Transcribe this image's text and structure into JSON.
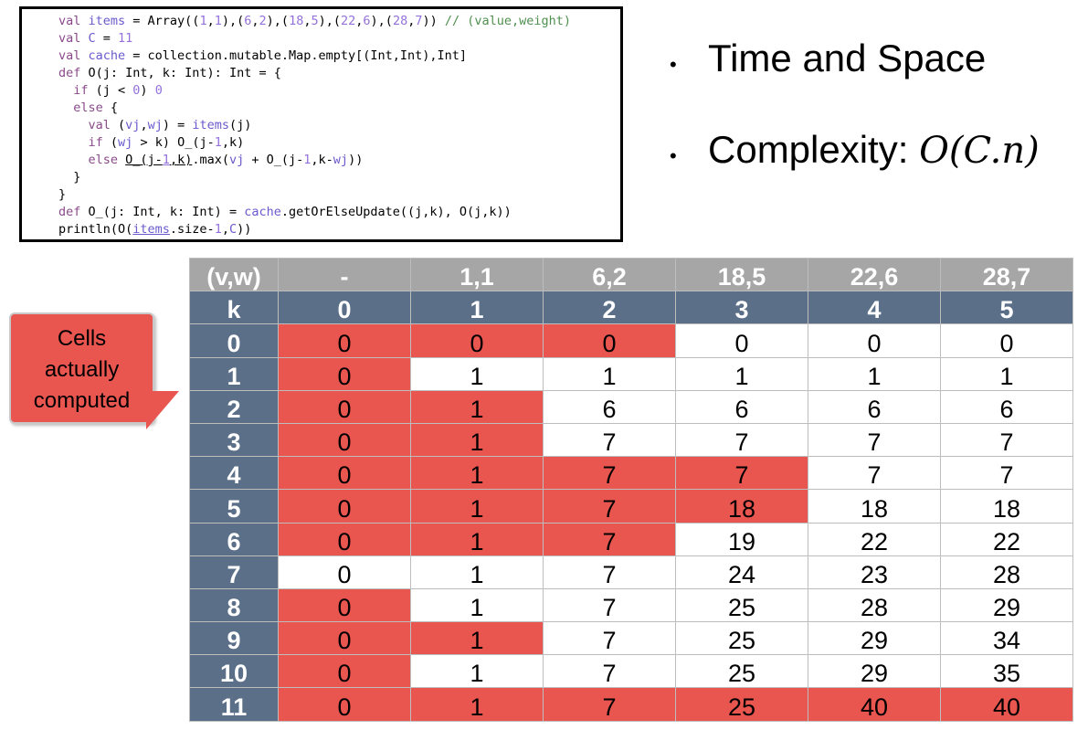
{
  "code": {
    "lines": [
      [
        {
          "t": "val ",
          "c": "kw"
        },
        {
          "t": "items",
          "c": "id"
        },
        {
          "t": " = Array(("
        },
        {
          "t": "1",
          "c": "num"
        },
        {
          "t": ","
        },
        {
          "t": "1",
          "c": "num"
        },
        {
          "t": "),("
        },
        {
          "t": "6",
          "c": "num"
        },
        {
          "t": ","
        },
        {
          "t": "2",
          "c": "num"
        },
        {
          "t": "),("
        },
        {
          "t": "18",
          "c": "num"
        },
        {
          "t": ","
        },
        {
          "t": "5",
          "c": "num"
        },
        {
          "t": "),("
        },
        {
          "t": "22",
          "c": "num"
        },
        {
          "t": ","
        },
        {
          "t": "6",
          "c": "num"
        },
        {
          "t": "),("
        },
        {
          "t": "28",
          "c": "num"
        },
        {
          "t": ","
        },
        {
          "t": "7",
          "c": "num"
        },
        {
          "t": ")) "
        },
        {
          "t": "// (value,weight)",
          "c": "cmt"
        }
      ],
      [
        {
          "t": "val ",
          "c": "kw"
        },
        {
          "t": "C",
          "c": "id"
        },
        {
          "t": " = "
        },
        {
          "t": "11",
          "c": "num"
        }
      ],
      [
        {
          "t": "val ",
          "c": "kw"
        },
        {
          "t": "cache",
          "c": "id"
        },
        {
          "t": " = collection.mutable.Map.empty[(Int,Int),Int]"
        }
      ],
      [
        {
          "t": "def ",
          "c": "kw"
        },
        {
          "t": "O(j: Int, k: Int): Int = {"
        }
      ],
      [
        {
          "t": "  if ",
          "c": "kw"
        },
        {
          "t": "(j < "
        },
        {
          "t": "0",
          "c": "num"
        },
        {
          "t": ") "
        },
        {
          "t": "0",
          "c": "num"
        }
      ],
      [
        {
          "t": "  else ",
          "c": "kw"
        },
        {
          "t": "{"
        }
      ],
      [
        {
          "t": "    val ",
          "c": "kw"
        },
        {
          "t": "("
        },
        {
          "t": "vj",
          "c": "id"
        },
        {
          "t": ","
        },
        {
          "t": "wj",
          "c": "id"
        },
        {
          "t": ") = "
        },
        {
          "t": "items",
          "c": "id"
        },
        {
          "t": "(j)"
        }
      ],
      [
        {
          "t": "    if ",
          "c": "kw"
        },
        {
          "t": "("
        },
        {
          "t": "wj",
          "c": "id"
        },
        {
          "t": " > k) O_(j-"
        },
        {
          "t": "1",
          "c": "num"
        },
        {
          "t": ",k)"
        }
      ],
      [
        {
          "t": "    else ",
          "c": "kw"
        },
        {
          "t": "O_(j-",
          "c": "ul"
        },
        {
          "t": "1",
          "c": "num ul"
        },
        {
          "t": ",k)",
          "c": "ul"
        },
        {
          "t": ".max("
        },
        {
          "t": "vj",
          "c": "id"
        },
        {
          "t": " + O_(j-"
        },
        {
          "t": "1",
          "c": "num"
        },
        {
          "t": ",k-"
        },
        {
          "t": "wj",
          "c": "id"
        },
        {
          "t": "))"
        }
      ],
      [
        {
          "t": "  }"
        }
      ],
      [
        {
          "t": "}"
        }
      ],
      [
        {
          "t": "def ",
          "c": "kw"
        },
        {
          "t": "O_(j: Int, k: Int) = "
        },
        {
          "t": "cache",
          "c": "id"
        },
        {
          "t": ".getOrElseUpdate((j,k), O(j,k))"
        }
      ],
      [
        {
          "t": "println(O("
        },
        {
          "t": "items",
          "c": "id ul"
        },
        {
          "t": ".size-"
        },
        {
          "t": "1",
          "c": "num"
        },
        {
          "t": ","
        },
        {
          "t": "C",
          "c": "id"
        },
        {
          "t": "))"
        }
      ]
    ]
  },
  "bullets": {
    "time_space": "Time and Space",
    "complexity_label": "Complexity:",
    "complexity_formula": "O(C.n)"
  },
  "callout": {
    "lines": [
      "Cells",
      "actually",
      "computed"
    ]
  },
  "colors": {
    "computed": "#e9554f",
    "header_gray": "#a6a6a6",
    "header_blue": "#5b7088"
  },
  "table": {
    "vw_header": [
      "(v,w)",
      "-",
      "1,1",
      "6,2",
      "18,5",
      "22,6",
      "28,7"
    ],
    "k_header": [
      "k",
      "0",
      "1",
      "2",
      "3",
      "4",
      "5"
    ],
    "rows": [
      {
        "k": "0",
        "values": [
          "0",
          "0",
          "0",
          "0",
          "0",
          "0"
        ],
        "computed": [
          true,
          true,
          true,
          false,
          false,
          false
        ]
      },
      {
        "k": "1",
        "values": [
          "0",
          "1",
          "1",
          "1",
          "1",
          "1"
        ],
        "computed": [
          true,
          false,
          false,
          false,
          false,
          false
        ]
      },
      {
        "k": "2",
        "values": [
          "0",
          "1",
          "6",
          "6",
          "6",
          "6"
        ],
        "computed": [
          true,
          true,
          false,
          false,
          false,
          false
        ]
      },
      {
        "k": "3",
        "values": [
          "0",
          "1",
          "7",
          "7",
          "7",
          "7"
        ],
        "computed": [
          true,
          true,
          false,
          false,
          false,
          false
        ]
      },
      {
        "k": "4",
        "values": [
          "0",
          "1",
          "7",
          "7",
          "7",
          "7"
        ],
        "computed": [
          true,
          true,
          true,
          true,
          false,
          false
        ]
      },
      {
        "k": "5",
        "values": [
          "0",
          "1",
          "7",
          "18",
          "18",
          "18"
        ],
        "computed": [
          true,
          true,
          true,
          true,
          false,
          false
        ]
      },
      {
        "k": "6",
        "values": [
          "0",
          "1",
          "7",
          "19",
          "22",
          "22"
        ],
        "computed": [
          true,
          true,
          true,
          false,
          false,
          false
        ]
      },
      {
        "k": "7",
        "values": [
          "0",
          "1",
          "7",
          "24",
          "23",
          "28"
        ],
        "computed": [
          false,
          false,
          false,
          false,
          false,
          false
        ]
      },
      {
        "k": "8",
        "values": [
          "0",
          "1",
          "7",
          "25",
          "28",
          "29"
        ],
        "computed": [
          true,
          false,
          false,
          false,
          false,
          false
        ]
      },
      {
        "k": "9",
        "values": [
          "0",
          "1",
          "7",
          "25",
          "29",
          "34"
        ],
        "computed": [
          true,
          true,
          false,
          false,
          false,
          false
        ]
      },
      {
        "k": "10",
        "values": [
          "0",
          "1",
          "7",
          "25",
          "29",
          "35"
        ],
        "computed": [
          true,
          false,
          false,
          false,
          false,
          false
        ]
      },
      {
        "k": "11",
        "values": [
          "0",
          "1",
          "7",
          "25",
          "40",
          "40"
        ],
        "computed": [
          true,
          true,
          true,
          true,
          true,
          true
        ]
      }
    ]
  }
}
